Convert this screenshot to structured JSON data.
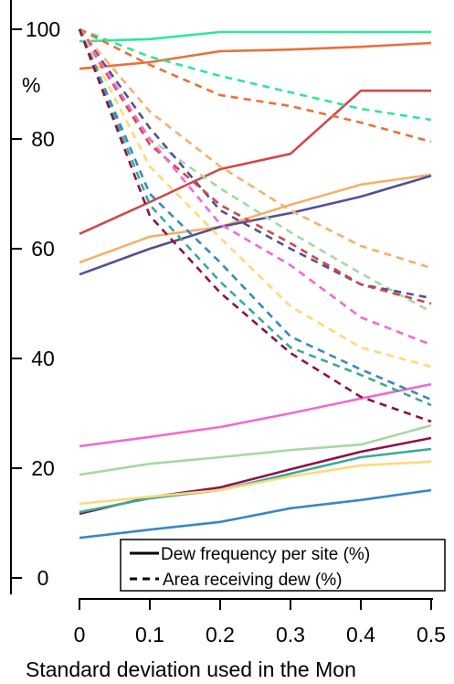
{
  "chart_data": {
    "type": "line",
    "x": [
      0,
      0.1,
      0.2,
      0.3,
      0.4,
      0.5
    ],
    "xticks": [
      "0",
      "0.1",
      "0.2",
      "0.3",
      "0.4",
      "0.5"
    ],
    "yticks": [
      "0",
      "20",
      "40",
      "60",
      "80",
      "100"
    ],
    "ytick_values": [
      0,
      20,
      40,
      60,
      80,
      100
    ],
    "xlim": [
      0,
      0.5
    ],
    "ylim": [
      -2,
      104
    ],
    "xlabel": "Standard deviation used in the Mon",
    "ylabel": "%",
    "legend": {
      "position": "bottom-right",
      "entries": [
        {
          "label": "Dew frequency per site (%)",
          "style": "solid"
        },
        {
          "label": "Area receiving dew (%)",
          "style": "dashed"
        }
      ]
    },
    "series": [
      {
        "style": "solid",
        "color": "#2ee6a0",
        "values": [
          97.8,
          98.2,
          99.5,
          99.5,
          99.5,
          99.5
        ]
      },
      {
        "style": "solid",
        "color": "#e8703a",
        "values": [
          92.8,
          94.0,
          96.0,
          96.3,
          96.8,
          97.5
        ]
      },
      {
        "style": "solid",
        "color": "#d04848",
        "values": [
          62.7,
          68.5,
          74.5,
          77.3,
          88.8,
          88.8
        ]
      },
      {
        "style": "solid",
        "color": "#f5b06a",
        "values": [
          57.5,
          62.2,
          64.0,
          68.0,
          71.7,
          73.5
        ]
      },
      {
        "style": "solid",
        "color": "#574d96",
        "values": [
          55.3,
          60.0,
          64.0,
          66.5,
          69.5,
          73.3
        ]
      },
      {
        "style": "solid",
        "color": "#f26ad0",
        "values": [
          24.0,
          25.7,
          27.5,
          30.0,
          32.7,
          35.3
        ]
      },
      {
        "style": "solid",
        "color": "#a6d8a4",
        "values": [
          18.8,
          20.8,
          22.0,
          23.3,
          24.3,
          27.8
        ]
      },
      {
        "style": "solid",
        "color": "#8a1448",
        "values": [
          11.7,
          14.7,
          16.5,
          19.8,
          23.0,
          25.5
        ]
      },
      {
        "style": "solid",
        "color": "#3aaa96",
        "values": [
          12.0,
          14.5,
          16.0,
          19.0,
          22.0,
          23.5
        ]
      },
      {
        "style": "solid",
        "color": "#ffd878",
        "values": [
          13.5,
          14.8,
          16.0,
          18.5,
          20.5,
          21.2
        ]
      },
      {
        "style": "solid",
        "color": "#3a87c2",
        "values": [
          7.3,
          8.8,
          10.2,
          12.7,
          14.2,
          16.0
        ]
      },
      {
        "style": "dashed",
        "color": "#2ee6a0",
        "values": [
          100.0,
          95.0,
          91.5,
          88.5,
          85.5,
          83.5
        ]
      },
      {
        "style": "dashed",
        "color": "#e8703a",
        "values": [
          100.0,
          93.5,
          88.0,
          86.0,
          83.0,
          79.5
        ]
      },
      {
        "style": "dashed",
        "color": "#f5b06a",
        "values": [
          100.0,
          85.0,
          75.0,
          67.0,
          60.5,
          56.5
        ]
      },
      {
        "style": "dashed",
        "color": "#a6d8a4",
        "values": [
          100.0,
          80.0,
          71.0,
          63.0,
          55.5,
          48.5
        ]
      },
      {
        "style": "dashed",
        "color": "#574d96",
        "values": [
          100.0,
          82.0,
          67.0,
          60.0,
          53.5,
          51.0
        ]
      },
      {
        "style": "dashed",
        "color": "#d04848",
        "values": [
          100.0,
          79.0,
          68.0,
          61.0,
          53.5,
          50.0
        ]
      },
      {
        "style": "dashed",
        "color": "#f26ad0",
        "values": [
          100.0,
          80.0,
          64.5,
          57.0,
          47.5,
          42.5
        ]
      },
      {
        "style": "dashed",
        "color": "#ffd878",
        "values": [
          100.0,
          75.0,
          62.0,
          49.5,
          42.0,
          38.5
        ]
      },
      {
        "style": "dashed",
        "color": "#3a87c2",
        "values": [
          100.0,
          70.0,
          57.5,
          44.0,
          38.0,
          32.5
        ]
      },
      {
        "style": "dashed",
        "color": "#3aaa96",
        "values": [
          100.0,
          68.0,
          54.0,
          42.0,
          37.0,
          31.5
        ]
      },
      {
        "style": "dashed",
        "color": "#8a1448",
        "values": [
          100.0,
          66.0,
          52.0,
          41.0,
          33.0,
          28.5
        ]
      }
    ]
  }
}
